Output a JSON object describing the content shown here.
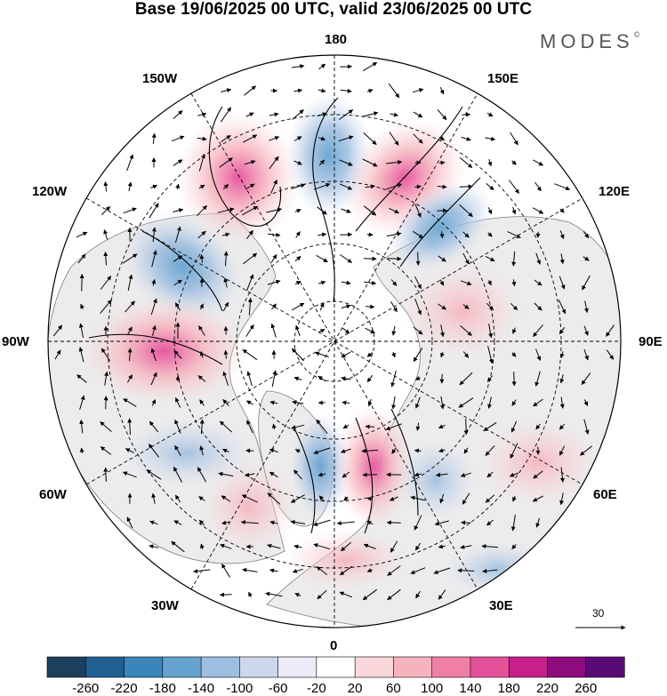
{
  "title": "Base 19/06/2025 00 UTC, valid 23/06/2025 00 UTC",
  "brand": {
    "name": "MODES",
    "mark": "©"
  },
  "map": {
    "projection": "north-polar-stereographic",
    "longitude_labels": {
      "top": "180",
      "bottom": "0",
      "left": "90W",
      "right": "90E",
      "upper_left": "150W",
      "upper_left_2": "120W",
      "upper_right": "150E",
      "upper_right_2": "120E",
      "lower_left": "60W",
      "lower_left_2": "30W",
      "lower_right": "60E",
      "lower_right_2": "30E"
    },
    "wind_reference": {
      "value": "30"
    },
    "colors": {
      "land": "#ececec",
      "ocean": "#ffffff",
      "coast": "#7f7f7f"
    }
  },
  "colorbar": {
    "ticks": [
      "-260",
      "-220",
      "-180",
      "-140",
      "-100",
      "-60",
      "-20",
      "20",
      "60",
      "100",
      "140",
      "180",
      "220",
      "260"
    ],
    "colors": [
      "#1d3f5e",
      "#1f5f91",
      "#3a86bb",
      "#66a3cf",
      "#9ebee0",
      "#cdd7ec",
      "#ebeaf6",
      "#ffffff",
      "#f9d7da",
      "#f6b2bd",
      "#f07fa3",
      "#e5509b",
      "#c7208a",
      "#8e0b7e",
      "#5a0a75"
    ]
  }
}
